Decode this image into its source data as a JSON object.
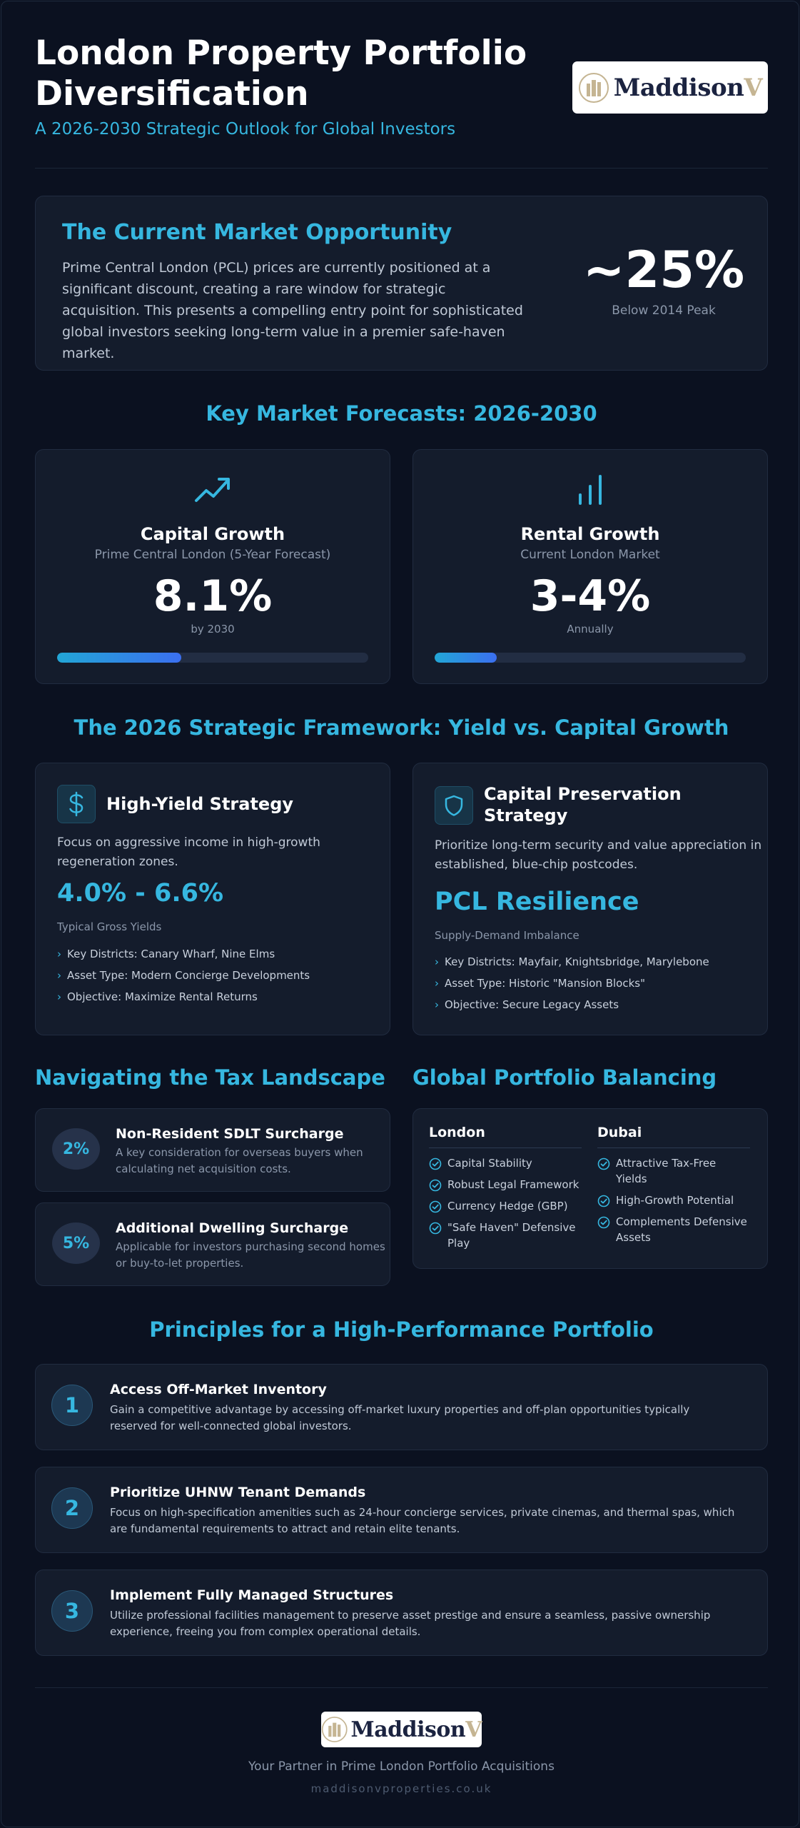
{
  "header": {
    "title": "London Property Portfolio Diversification",
    "subtitle": "A 2026-2030 Strategic Outlook for Global Investors",
    "logo": {
      "name": "Maddison",
      "suffix": "V"
    }
  },
  "opportunity": {
    "title": "The Current Market Opportunity",
    "text": "Prime Central London (PCL) prices are currently positioned at a significant discount, creating a rare window for strategic acquisition. This presents a compelling entry point for sophisticated global investors seeking long-term value in a premier safe-haven market.",
    "stat": "~25%",
    "stat_caption": "Below 2014 Peak"
  },
  "forecasts": {
    "section_title": "Key Market Forecasts: 2026-2030",
    "cards": [
      {
        "icon": "trending-up-icon",
        "title": "Capital Growth",
        "subtitle": "Prime Central London (5-Year Forecast)",
        "value": "8.1%",
        "caption": "by 2030",
        "bar_fraction": 0.4
      },
      {
        "icon": "bar-chart-icon",
        "title": "Rental Growth",
        "subtitle": "Current London Market",
        "value": "3-4%",
        "caption": "Annually",
        "bar_fraction": 0.2
      }
    ]
  },
  "framework": {
    "section_title": "The 2026 Strategic Framework: Yield vs. Capital Growth",
    "strategies": [
      {
        "icon": "dollar-icon",
        "title": "High-Yield Strategy",
        "description": "Focus on aggressive income in high-growth regeneration zones.",
        "highlight": "4.0% - 6.6%",
        "highlight_caption": "Typical Gross Yields",
        "points": [
          "Key Districts: Canary Wharf, Nine Elms",
          "Asset Type: Modern Concierge Developments",
          "Objective: Maximize Rental Returns"
        ]
      },
      {
        "icon": "shield-icon",
        "title": "Capital Preservation Strategy",
        "description": "Prioritize long-term security and value appreciation in established, blue-chip postcodes.",
        "highlight": "PCL Resilience",
        "highlight_caption": "Supply-Demand Imbalance",
        "points": [
          "Key Districts: Mayfair, Knightsbridge, Marylebone",
          "Asset Type: Historic \"Mansion Blocks\"",
          "Objective: Secure Legacy Assets"
        ]
      }
    ]
  },
  "tax": {
    "title": "Navigating the Tax Landscape",
    "items": [
      {
        "badge": "2%",
        "title": "Non-Resident SDLT Surcharge",
        "description": "A key consideration for overseas buyers when calculating net acquisition costs."
      },
      {
        "badge": "5%",
        "title": "Additional Dwelling Surcharge",
        "description": "Applicable for investors purchasing second homes or buy-to-let properties."
      }
    ]
  },
  "balancing": {
    "title": "Global Portfolio Balancing",
    "columns": [
      {
        "heading": "London",
        "items": [
          "Capital Stability",
          "Robust Legal Framework",
          "Currency Hedge (GBP)",
          "\"Safe Haven\" Defensive Play"
        ]
      },
      {
        "heading": "Dubai",
        "items": [
          "Attractive Tax-Free Yields",
          "High-Growth Potential",
          "Complements Defensive Assets"
        ]
      }
    ]
  },
  "principles": {
    "section_title": "Principles for a High-Performance Portfolio",
    "items": [
      {
        "number": "1",
        "title": "Access Off-Market Inventory",
        "description": "Gain a competitive advantage by accessing off-market luxury properties and off-plan opportunities typically reserved for well-connected global investors."
      },
      {
        "number": "2",
        "title": "Prioritize UHNW Tenant Demands",
        "description": "Focus on high-specification amenities such as 24-hour concierge services, private cinemas, and thermal spas, which are fundamental requirements to attract and retain elite tenants."
      },
      {
        "number": "3",
        "title": "Implement Fully Managed Structures",
        "description": "Utilize professional facilities management to preserve asset prestige and ensure a seamless, passive ownership experience, freeing you from complex operational details."
      }
    ]
  },
  "footer": {
    "tagline": "Your Partner in Prime London Portfolio Acquisitions",
    "url": "maddisonvproperties.co.uk"
  },
  "colors": {
    "accent": "#36b7e0",
    "background": "#0b1120",
    "card": "#141c2c"
  }
}
